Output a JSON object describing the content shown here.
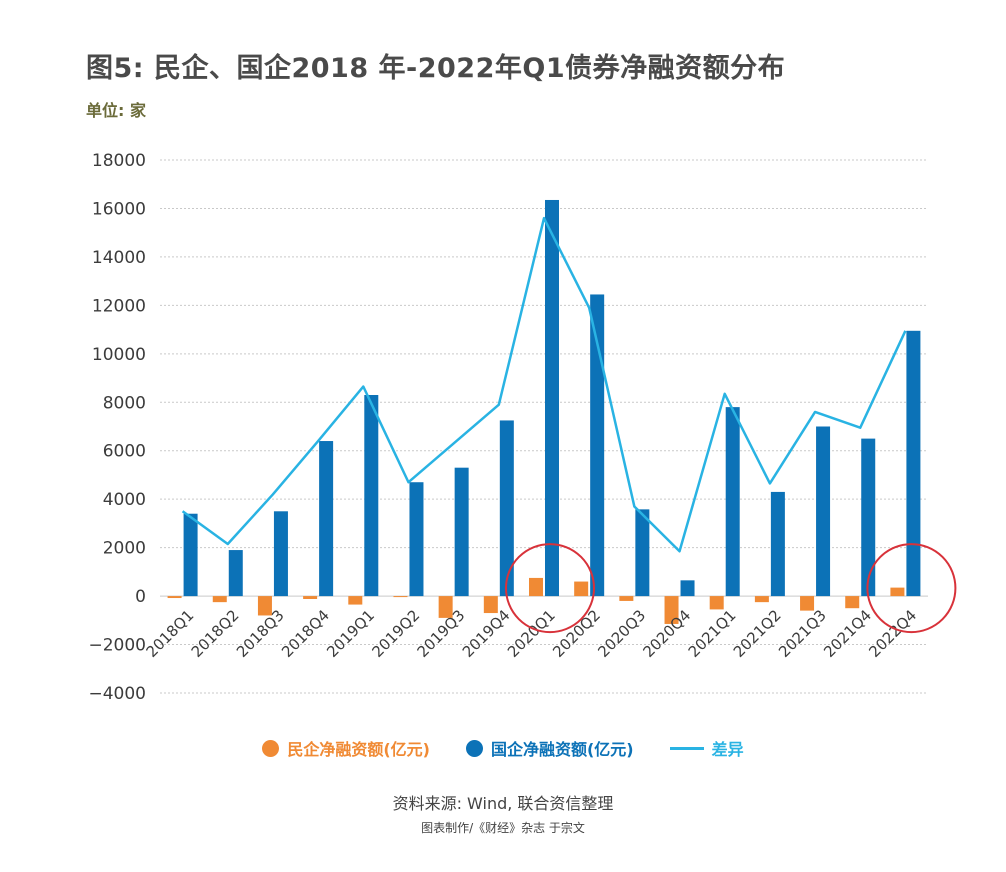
{
  "title": "图5: 民企、国企2018 年-2022年Q1债券净融资额分布",
  "unit_label": "单位: 家",
  "source": "资料来源: Wind, 联合资信整理",
  "credit": "图表制作/《财经》杂志 于宗文",
  "colors": {
    "private": "#f08a34",
    "state": "#0c72b7",
    "diff": "#29b3e3",
    "highlight": "#d8323a",
    "grid": "#c9c9c9"
  },
  "chart_data": {
    "type": "bar",
    "categories": [
      "2018Q1",
      "2018Q2",
      "2018Q3",
      "2018Q4",
      "2019Q1",
      "2019Q2",
      "2019Q3",
      "2019Q4",
      "2020Q1",
      "2020Q2",
      "2020Q3",
      "2020Q4",
      "2021Q1",
      "2021Q2",
      "2021Q3",
      "2021Q4",
      "2022Q4"
    ],
    "series": [
      {
        "name": "民企净融资额(亿元)",
        "kind": "bar",
        "values": [
          -80,
          -250,
          -800,
          -120,
          -350,
          -30,
          -900,
          -700,
          750,
          600,
          -200,
          -1150,
          -550,
          -250,
          -600,
          -500,
          350
        ]
      },
      {
        "name": "国企净融资额(亿元)",
        "kind": "bar",
        "values": [
          3400,
          1900,
          3500,
          6400,
          8300,
          4700,
          5300,
          7250,
          16350,
          12450,
          3580,
          650,
          7800,
          4300,
          7000,
          6500,
          10950
        ]
      },
      {
        "name": "差异",
        "kind": "line",
        "values": [
          3500,
          2150,
          4200,
          6400,
          8650,
          4700,
          6300,
          7900,
          15600,
          11900,
          3700,
          1850,
          8350,
          4650,
          7600,
          6950,
          10950
        ]
      }
    ],
    "yticks": [
      18000,
      16000,
      14000,
      12000,
      10000,
      8000,
      6000,
      4000,
      2000,
      0,
      -2000,
      -4000
    ],
    "ytick_labels": [
      "18000",
      "16000",
      "14000",
      "12000",
      "10000",
      "8000",
      "6000",
      "4000",
      "2000",
      "0",
      "−2000",
      "−4000"
    ],
    "ylim": [
      -4000,
      18000
    ],
    "grid": true,
    "legend_position": "bottom",
    "highlighted_categories": [
      "2020Q1",
      "2022Q4"
    ]
  },
  "legend": [
    {
      "label": "民企净融资额(亿元)",
      "swatch": "dot",
      "color": "#f08a34"
    },
    {
      "label": "国企净融资额(亿元)",
      "swatch": "dot",
      "color": "#0c72b7"
    },
    {
      "label": "差异",
      "swatch": "line",
      "color": "#29b3e3"
    }
  ]
}
